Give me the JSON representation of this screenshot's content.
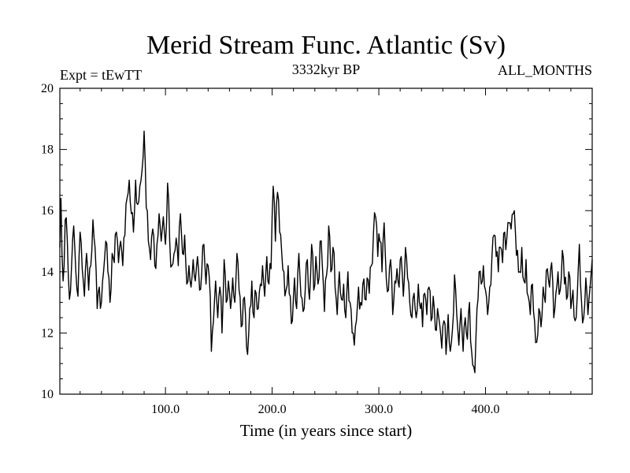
{
  "chart_data": {
    "type": "line",
    "title": "Merid Stream Func. Atlantic (Sv)",
    "subtitle_left": "Expt = tEwTT",
    "subtitle_center": "3332kyr BP",
    "subtitle_right": "ALL_MONTHS",
    "xlabel": "Time (in years since start)",
    "ylabel": "",
    "xlim": [
      1,
      500
    ],
    "ylim": [
      10,
      20
    ],
    "x_ticks": [
      100,
      200,
      300,
      400
    ],
    "x_tick_labels": [
      "100.0",
      "200.0",
      "300.0",
      "400.0"
    ],
    "y_ticks": [
      10,
      12,
      14,
      16,
      18,
      20
    ],
    "y_tick_labels": [
      "10",
      "12",
      "14",
      "16",
      "18",
      "20"
    ],
    "grid": false,
    "series": [
      {
        "name": "Merid Stream Func. Atlantic",
        "x_start": 1,
        "x_step": 1,
        "keyframes": [
          [
            1,
            14.8
          ],
          [
            2,
            16.4
          ],
          [
            3,
            14.6
          ],
          [
            4,
            13.7
          ],
          [
            6,
            15.7
          ],
          [
            8,
            15.0
          ],
          [
            10,
            13.1
          ],
          [
            12,
            14.2
          ],
          [
            14,
            15.5
          ],
          [
            16,
            14.0
          ],
          [
            18,
            13.2
          ],
          [
            20,
            15.3
          ],
          [
            22,
            14.1
          ],
          [
            24,
            13.2
          ],
          [
            26,
            14.6
          ],
          [
            28,
            13.4
          ],
          [
            30,
            14.2
          ],
          [
            32,
            15.7
          ],
          [
            34,
            14.8
          ],
          [
            36,
            12.8
          ],
          [
            38,
            13.5
          ],
          [
            40,
            13.0
          ],
          [
            42,
            14.0
          ],
          [
            44,
            15.0
          ],
          [
            46,
            14.0
          ],
          [
            48,
            13.0
          ],
          [
            50,
            14.6
          ],
          [
            52,
            14.3
          ],
          [
            54,
            15.3
          ],
          [
            56,
            14.3
          ],
          [
            58,
            15.0
          ],
          [
            60,
            14.2
          ],
          [
            62,
            15.2
          ],
          [
            64,
            16.4
          ],
          [
            66,
            17.0
          ],
          [
            68,
            15.9
          ],
          [
            70,
            15.3
          ],
          [
            72,
            17.0
          ],
          [
            74,
            16.2
          ],
          [
            76,
            16.8
          ],
          [
            78,
            17.3
          ],
          [
            80,
            18.6
          ],
          [
            81,
            17.6
          ],
          [
            82,
            16.1
          ],
          [
            84,
            15.0
          ],
          [
            86,
            14.4
          ],
          [
            88,
            15.4
          ],
          [
            90,
            14.2
          ],
          [
            92,
            14.9
          ],
          [
            94,
            15.9
          ],
          [
            96,
            15.0
          ],
          [
            98,
            15.8
          ],
          [
            100,
            14.9
          ],
          [
            102,
            16.9
          ],
          [
            104,
            15.0
          ],
          [
            106,
            14.2
          ],
          [
            108,
            14.6
          ],
          [
            110,
            15.1
          ],
          [
            112,
            14.2
          ],
          [
            114,
            15.9
          ],
          [
            116,
            14.6
          ],
          [
            118,
            15.2
          ],
          [
            120,
            13.6
          ],
          [
            122,
            14.2
          ],
          [
            124,
            13.5
          ],
          [
            126,
            14.4
          ],
          [
            128,
            13.7
          ],
          [
            130,
            14.5
          ],
          [
            132,
            13.4
          ],
          [
            134,
            14.0
          ],
          [
            136,
            14.9
          ],
          [
            138,
            13.6
          ],
          [
            140,
            14.2
          ],
          [
            142,
            13.2
          ],
          [
            143,
            11.4
          ],
          [
            145,
            12.4
          ],
          [
            147,
            13.7
          ],
          [
            149,
            12.5
          ],
          [
            151,
            13.5
          ],
          [
            153,
            12.0
          ],
          [
            155,
            14.4
          ],
          [
            157,
            13.0
          ],
          [
            159,
            13.7
          ],
          [
            161,
            12.8
          ],
          [
            163,
            13.8
          ],
          [
            165,
            13.0
          ],
          [
            167,
            14.6
          ],
          [
            169,
            13.4
          ],
          [
            171,
            12.2
          ],
          [
            173,
            13.1
          ],
          [
            175,
            12.6
          ],
          [
            177,
            11.3
          ],
          [
            179,
            12.8
          ],
          [
            181,
            13.7
          ],
          [
            183,
            12.5
          ],
          [
            185,
            13.3
          ],
          [
            187,
            12.8
          ],
          [
            189,
            13.6
          ],
          [
            191,
            14.2
          ],
          [
            193,
            13.2
          ],
          [
            195,
            14.5
          ],
          [
            197,
            13.6
          ],
          [
            199,
            14.1
          ],
          [
            201,
            16.8
          ],
          [
            203,
            15.0
          ],
          [
            205,
            16.6
          ],
          [
            207,
            15.3
          ],
          [
            209,
            14.6
          ],
          [
            211,
            14.0
          ],
          [
            213,
            13.4
          ],
          [
            215,
            14.2
          ],
          [
            217,
            13.2
          ],
          [
            219,
            12.4
          ],
          [
            221,
            13.8
          ],
          [
            223,
            12.8
          ],
          [
            225,
            14.6
          ],
          [
            227,
            13.2
          ],
          [
            229,
            12.7
          ],
          [
            231,
            13.4
          ],
          [
            233,
            14.4
          ],
          [
            235,
            13.1
          ],
          [
            237,
            14.9
          ],
          [
            239,
            13.4
          ],
          [
            241,
            14.5
          ],
          [
            243,
            13.6
          ],
          [
            245,
            15.0
          ],
          [
            247,
            14.2
          ],
          [
            249,
            12.7
          ],
          [
            251,
            13.9
          ],
          [
            253,
            15.5
          ],
          [
            255,
            14.0
          ],
          [
            257,
            14.8
          ],
          [
            259,
            13.5
          ],
          [
            261,
            12.6
          ],
          [
            263,
            14.0
          ],
          [
            265,
            13.1
          ],
          [
            267,
            13.6
          ],
          [
            269,
            12.5
          ],
          [
            271,
            14.0
          ],
          [
            273,
            13.0
          ],
          [
            275,
            12.0
          ],
          [
            277,
            11.6
          ],
          [
            279,
            12.4
          ],
          [
            281,
            13.5
          ],
          [
            283,
            13.0
          ],
          [
            285,
            13.6
          ],
          [
            287,
            13.1
          ],
          [
            289,
            13.8
          ],
          [
            291,
            13.3
          ],
          [
            293,
            14.2
          ],
          [
            295,
            15.3
          ],
          [
            297,
            15.8
          ],
          [
            299,
            14.5
          ],
          [
            301,
            15.0
          ],
          [
            303,
            14.0
          ],
          [
            305,
            15.6
          ],
          [
            307,
            13.8
          ],
          [
            309,
            13.4
          ],
          [
            311,
            14.4
          ],
          [
            313,
            12.6
          ],
          [
            315,
            13.7
          ],
          [
            317,
            14.1
          ],
          [
            319,
            13.5
          ],
          [
            321,
            14.5
          ],
          [
            323,
            13.2
          ],
          [
            325,
            14.8
          ],
          [
            327,
            13.8
          ],
          [
            329,
            13.0
          ],
          [
            331,
            12.5
          ],
          [
            333,
            13.3
          ],
          [
            335,
            12.5
          ],
          [
            337,
            13.6
          ],
          [
            339,
            12.8
          ],
          [
            341,
            12.2
          ],
          [
            343,
            13.3
          ],
          [
            345,
            12.6
          ],
          [
            347,
            13.5
          ],
          [
            349,
            12.4
          ],
          [
            351,
            13.2
          ],
          [
            353,
            12.1
          ],
          [
            355,
            12.8
          ],
          [
            357,
            12.3
          ],
          [
            359,
            11.5
          ],
          [
            361,
            12.4
          ],
          [
            363,
            11.3
          ],
          [
            365,
            12.6
          ],
          [
            367,
            11.4
          ],
          [
            369,
            12.1
          ],
          [
            371,
            13.9
          ],
          [
            373,
            12.6
          ],
          [
            375,
            11.6
          ],
          [
            377,
            12.8
          ],
          [
            379,
            11.4
          ],
          [
            381,
            12.5
          ],
          [
            383,
            11.8
          ],
          [
            385,
            13.0
          ],
          [
            387,
            11.4
          ],
          [
            389,
            10.9
          ],
          [
            390,
            10.7
          ],
          [
            392,
            12.8
          ],
          [
            394,
            14.0
          ],
          [
            396,
            13.6
          ],
          [
            398,
            14.2
          ],
          [
            400,
            13.4
          ],
          [
            402,
            12.6
          ],
          [
            404,
            13.5
          ],
          [
            406,
            14.5
          ],
          [
            408,
            15.2
          ],
          [
            410,
            14.5
          ],
          [
            412,
            14.0
          ],
          [
            414,
            14.8
          ],
          [
            416,
            14.3
          ],
          [
            418,
            15.3
          ],
          [
            420,
            15.1
          ],
          [
            422,
            15.6
          ],
          [
            424,
            15.4
          ],
          [
            426,
            15.9
          ],
          [
            428,
            15.3
          ],
          [
            430,
            14.7
          ],
          [
            432,
            14.0
          ],
          [
            434,
            14.8
          ],
          [
            436,
            13.7
          ],
          [
            438,
            14.4
          ],
          [
            440,
            13.2
          ],
          [
            442,
            12.6
          ],
          [
            444,
            13.6
          ],
          [
            446,
            12.4
          ],
          [
            448,
            11.7
          ],
          [
            450,
            12.8
          ],
          [
            452,
            12.2
          ],
          [
            454,
            13.5
          ],
          [
            456,
            13.0
          ],
          [
            458,
            14.1
          ],
          [
            460,
            13.5
          ],
          [
            462,
            14.3
          ],
          [
            464,
            12.5
          ],
          [
            466,
            13.3
          ],
          [
            468,
            14.0
          ],
          [
            470,
            13.4
          ],
          [
            472,
            14.7
          ],
          [
            474,
            13.6
          ],
          [
            476,
            13.1
          ],
          [
            478,
            14.0
          ],
          [
            480,
            12.8
          ],
          [
            482,
            13.4
          ],
          [
            484,
            12.4
          ],
          [
            486,
            13.2
          ],
          [
            488,
            14.9
          ],
          [
            490,
            13.0
          ],
          [
            492,
            12.5
          ],
          [
            494,
            13.8
          ],
          [
            496,
            12.6
          ],
          [
            498,
            13.5
          ],
          [
            500,
            14.4
          ]
        ],
        "noise_amplitude": 0.5,
        "noise_seed": 7,
        "color": "#000000"
      }
    ]
  }
}
